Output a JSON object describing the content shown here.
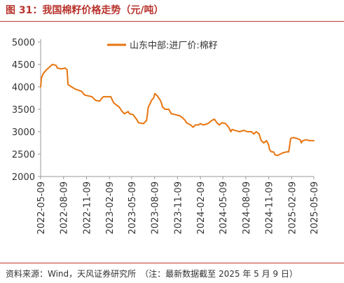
{
  "header": {
    "title": "图 31：我国棉籽价格走势（元/吨）"
  },
  "footer": {
    "source": "资料来源：Wind，天风证券研究所　（注：最新数据截至 2025 年 5 月 9 日）"
  },
  "colors": {
    "title": "#b8322b",
    "rule": "#c0392b",
    "line": "#e8750f",
    "axis": "#999999"
  },
  "chart_data": {
    "type": "line",
    "title": "",
    "xlabel": "",
    "ylabel": "",
    "ylim": [
      2000,
      5000
    ],
    "yticks": [
      2000,
      2500,
      3000,
      3500,
      4000,
      4500,
      5000
    ],
    "xrange": [
      "2022-05-09",
      "2025-05-09"
    ],
    "xticks": [
      "2022-05-09",
      "2022-08-09",
      "2022-11-09",
      "2023-02-09",
      "2023-05-09",
      "2023-08-09",
      "2023-11-09",
      "2024-02-09",
      "2024-05-09",
      "2024-08-09",
      "2024-11-09",
      "2025-02-09",
      "2025-05-09"
    ],
    "legend": "top-center",
    "grid": false,
    "series": [
      {
        "name": "山东中部:进厂价:棉籽",
        "points": [
          [
            "2022-05-09",
            4000
          ],
          [
            "2022-05-12",
            4200
          ],
          [
            "2022-05-20",
            4300
          ],
          [
            "2022-06-01",
            4380
          ],
          [
            "2022-06-15",
            4450
          ],
          [
            "2022-06-25",
            4500
          ],
          [
            "2022-07-10",
            4480
          ],
          [
            "2022-07-15",
            4420
          ],
          [
            "2022-07-31",
            4400
          ],
          [
            "2022-08-15",
            4420
          ],
          [
            "2022-08-23",
            4380
          ],
          [
            "2022-08-27",
            4050
          ],
          [
            "2022-09-10",
            4000
          ],
          [
            "2022-09-25",
            3950
          ],
          [
            "2022-10-10",
            3920
          ],
          [
            "2022-10-20",
            3900
          ],
          [
            "2022-11-01",
            3820
          ],
          [
            "2022-11-15",
            3800
          ],
          [
            "2022-12-01",
            3780
          ],
          [
            "2022-12-15",
            3700
          ],
          [
            "2022-12-31",
            3680
          ],
          [
            "2023-01-15",
            3780
          ],
          [
            "2023-01-31",
            3780
          ],
          [
            "2023-02-15",
            3780
          ],
          [
            "2023-02-25",
            3650
          ],
          [
            "2023-03-01",
            3630
          ],
          [
            "2023-03-20",
            3550
          ],
          [
            "2023-04-01",
            3450
          ],
          [
            "2023-04-10",
            3400
          ],
          [
            "2023-04-25",
            3450
          ],
          [
            "2023-05-01",
            3400
          ],
          [
            "2023-05-15",
            3380
          ],
          [
            "2023-06-01",
            3250
          ],
          [
            "2023-06-05",
            3200
          ],
          [
            "2023-06-25",
            3180
          ],
          [
            "2023-07-08",
            3250
          ],
          [
            "2023-07-15",
            3550
          ],
          [
            "2023-07-20",
            3600
          ],
          [
            "2023-07-28",
            3700
          ],
          [
            "2023-08-05",
            3750
          ],
          [
            "2023-08-10",
            3850
          ],
          [
            "2023-08-15",
            3830
          ],
          [
            "2023-08-20",
            3800
          ],
          [
            "2023-09-01",
            3700
          ],
          [
            "2023-09-05",
            3650
          ],
          [
            "2023-09-10",
            3550
          ],
          [
            "2023-09-20",
            3500
          ],
          [
            "2023-10-05",
            3500
          ],
          [
            "2023-10-10",
            3450
          ],
          [
            "2023-10-15",
            3400
          ],
          [
            "2023-11-01",
            3380
          ],
          [
            "2023-11-20",
            3350
          ],
          [
            "2023-12-01",
            3300
          ],
          [
            "2023-12-10",
            3250
          ],
          [
            "2023-12-15",
            3200
          ],
          [
            "2024-01-01",
            3150
          ],
          [
            "2024-01-10",
            3100
          ],
          [
            "2024-01-20",
            3150
          ],
          [
            "2024-02-01",
            3150
          ],
          [
            "2024-02-09",
            3180
          ],
          [
            "2024-02-20",
            3150
          ],
          [
            "2024-03-05",
            3170
          ],
          [
            "2024-03-15",
            3200
          ],
          [
            "2024-03-25",
            3250
          ],
          [
            "2024-04-05",
            3280
          ],
          [
            "2024-04-15",
            3200
          ],
          [
            "2024-04-25",
            3150
          ],
          [
            "2024-05-05",
            3200
          ],
          [
            "2024-05-20",
            3180
          ],
          [
            "2024-06-01",
            3100
          ],
          [
            "2024-06-10",
            3000
          ],
          [
            "2024-06-15",
            3050
          ],
          [
            "2024-07-01",
            3020
          ],
          [
            "2024-07-15",
            3000
          ],
          [
            "2024-08-01",
            3030
          ],
          [
            "2024-08-15",
            3000
          ],
          [
            "2024-09-01",
            3000
          ],
          [
            "2024-09-10",
            2950
          ],
          [
            "2024-09-20",
            3000
          ],
          [
            "2024-10-01",
            2950
          ],
          [
            "2024-10-10",
            2800
          ],
          [
            "2024-10-20",
            2750
          ],
          [
            "2024-10-31",
            2800
          ],
          [
            "2024-11-09",
            2700
          ],
          [
            "2024-11-12",
            2600
          ],
          [
            "2024-11-20",
            2550
          ],
          [
            "2024-11-28",
            2550
          ],
          [
            "2024-12-05",
            2480
          ],
          [
            "2024-12-15",
            2470
          ],
          [
            "2024-12-25",
            2500
          ],
          [
            "2025-01-05",
            2530
          ],
          [
            "2025-01-20",
            2550
          ],
          [
            "2025-01-28",
            2550
          ],
          [
            "2025-02-05",
            2850
          ],
          [
            "2025-02-15",
            2870
          ],
          [
            "2025-03-01",
            2850
          ],
          [
            "2025-03-15",
            2820
          ],
          [
            "2025-03-20",
            2750
          ],
          [
            "2025-03-25",
            2800
          ],
          [
            "2025-04-10",
            2820
          ],
          [
            "2025-04-20",
            2800
          ],
          [
            "2025-05-09",
            2800
          ]
        ]
      }
    ]
  }
}
